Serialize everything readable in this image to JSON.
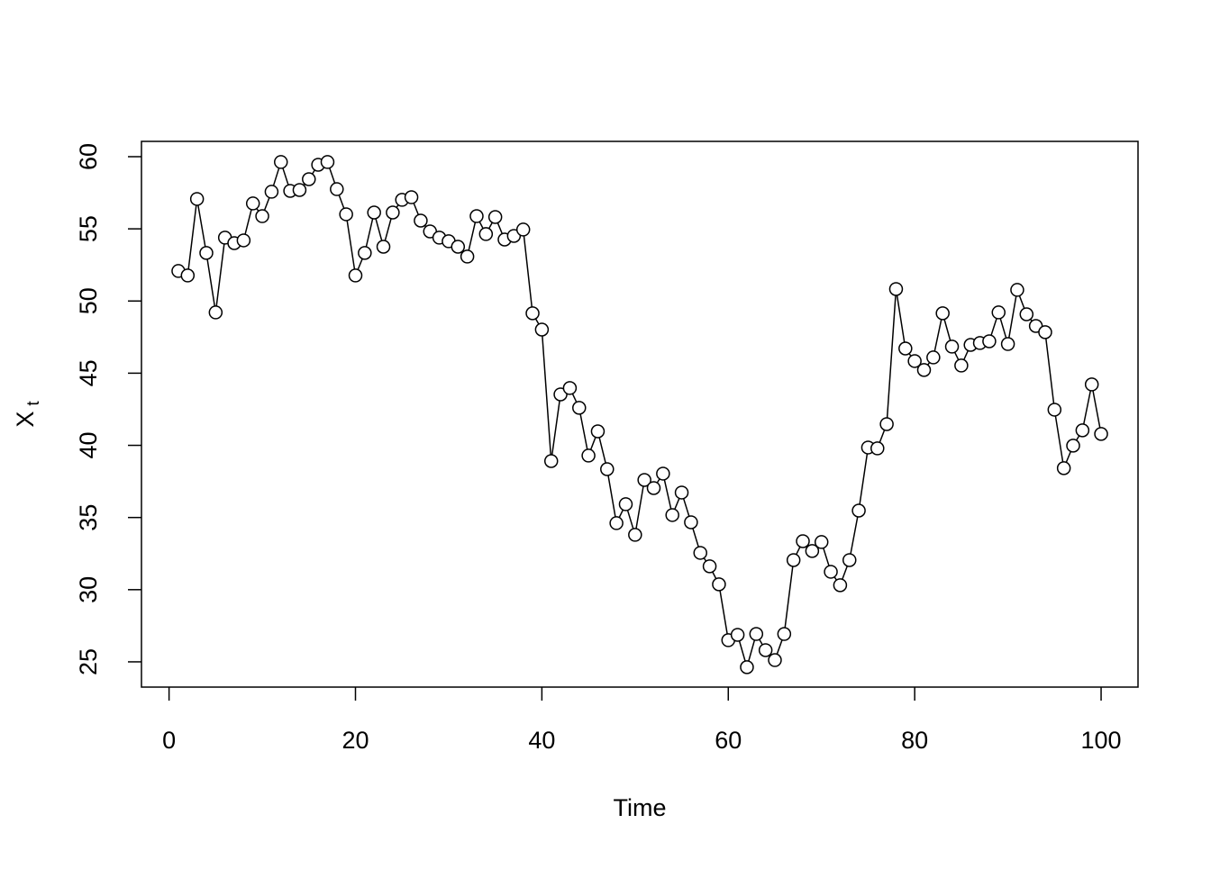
{
  "chart_data": {
    "type": "line",
    "xlabel": "Time",
    "ylabel": "X",
    "ylabel_sub": "t",
    "color": "#000000",
    "x": [
      1,
      2,
      3,
      4,
      5,
      6,
      7,
      8,
      9,
      10,
      11,
      12,
      13,
      14,
      15,
      16,
      17,
      18,
      19,
      20,
      21,
      22,
      23,
      24,
      25,
      26,
      27,
      28,
      29,
      30,
      31,
      32,
      33,
      34,
      35,
      36,
      37,
      38,
      39,
      40,
      41,
      42,
      43,
      44,
      45,
      46,
      47,
      48,
      49,
      50,
      51,
      52,
      53,
      54,
      55,
      56,
      57,
      58,
      59,
      60,
      61,
      62,
      63,
      64,
      65,
      66,
      67,
      68,
      69,
      70,
      71,
      72,
      73,
      74,
      75,
      76,
      77,
      78,
      79,
      80,
      81,
      82,
      83,
      84,
      85,
      86,
      87,
      88,
      89,
      90,
      91,
      92,
      93,
      94,
      95,
      96,
      97,
      98,
      99,
      100
    ],
    "values": [
      52.08,
      51.77,
      57.07,
      53.33,
      49.21,
      54.39,
      54.01,
      54.2,
      56.76,
      55.88,
      57.57,
      59.63,
      57.63,
      57.69,
      58.44,
      59.44,
      59.63,
      57.75,
      56.01,
      51.77,
      53.33,
      56.13,
      53.76,
      56.13,
      57.01,
      57.19,
      55.57,
      54.82,
      54.39,
      54.14,
      53.76,
      53.08,
      55.88,
      54.64,
      55.82,
      54.26,
      54.51,
      54.95,
      49.15,
      48.02,
      38.91,
      43.53,
      43.97,
      42.6,
      39.29,
      40.97,
      38.35,
      34.61,
      35.92,
      33.8,
      37.6,
      37.04,
      38.04,
      35.17,
      36.73,
      34.67,
      32.55,
      31.62,
      30.37,
      26.5,
      26.87,
      24.63,
      26.93,
      25.81,
      25.12,
      26.93,
      32.05,
      33.36,
      32.68,
      33.3,
      31.24,
      30.31,
      32.05,
      35.48,
      39.85,
      39.79,
      41.47,
      50.83,
      46.71,
      45.84,
      45.22,
      46.09,
      49.15,
      46.84,
      45.53,
      46.96,
      47.09,
      47.21,
      49.21,
      47.02,
      50.77,
      49.08,
      48.27,
      47.84,
      42.47,
      38.42,
      39.98,
      41.04,
      44.22,
      40.79
    ],
    "xlim": [
      -2.96,
      103.96
    ],
    "ylim": [
      23.25,
      61.06
    ],
    "xticks": [
      0,
      20,
      40,
      60,
      80,
      100
    ],
    "yticks": [
      25,
      30,
      35,
      40,
      45,
      50,
      55,
      60
    ]
  }
}
